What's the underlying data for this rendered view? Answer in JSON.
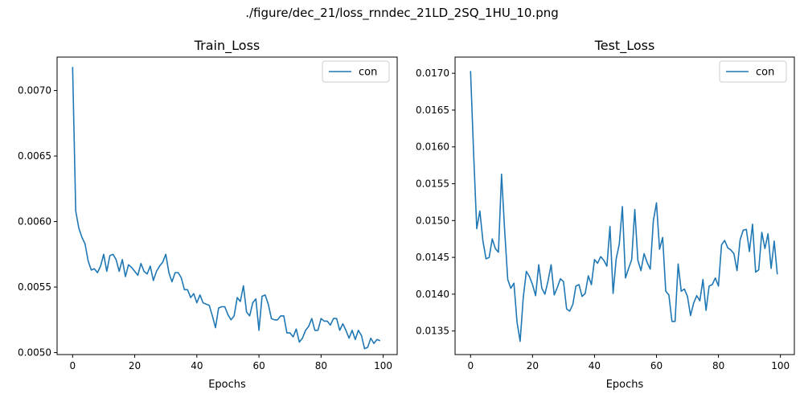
{
  "figure": {
    "title": "./figure/dec_21/loss_rnndec_21LD_2SQ_1HU_10.png"
  },
  "colors": {
    "series": "#1f77b4",
    "axis": "#000000",
    "legend_border": "#cccccc"
  },
  "chart_data": [
    {
      "type": "line",
      "title": "Train_Loss",
      "xlabel": "Epochs",
      "ylabel": "",
      "xlim": [
        -5,
        104.5
      ],
      "ylim": [
        0.004985,
        0.007255
      ],
      "xticks": [
        0,
        20,
        40,
        60,
        80,
        100
      ],
      "yticks": [
        0.005,
        0.0055,
        0.006,
        0.0065,
        0.007
      ],
      "ytick_labels": [
        "0.0050",
        "0.0055",
        "0.0060",
        "0.0065",
        "0.0070"
      ],
      "grid": false,
      "legend": "top-right",
      "series": [
        {
          "name": "con",
          "color": "#1f77b4",
          "y": [
            0.00718,
            0.00608,
            0.00595,
            0.00588,
            0.00583,
            0.0057,
            0.00563,
            0.00564,
            0.00561,
            0.00566,
            0.00575,
            0.00562,
            0.00574,
            0.00575,
            0.00571,
            0.00562,
            0.00571,
            0.00558,
            0.00567,
            0.00565,
            0.00562,
            0.00559,
            0.00568,
            0.00562,
            0.0056,
            0.00566,
            0.00555,
            0.00562,
            0.00566,
            0.00569,
            0.00575,
            0.00561,
            0.00554,
            0.00561,
            0.00561,
            0.00557,
            0.00548,
            0.00548,
            0.00542,
            0.00545,
            0.00538,
            0.00544,
            0.00538,
            0.00537,
            0.00536,
            0.00528,
            0.00519,
            0.00534,
            0.00535,
            0.00535,
            0.00529,
            0.00525,
            0.00528,
            0.00542,
            0.00539,
            0.00551,
            0.00531,
            0.00528,
            0.00538,
            0.00541,
            0.00517,
            0.00543,
            0.00544,
            0.00537,
            0.00526,
            0.00525,
            0.00525,
            0.00528,
            0.00528,
            0.00515,
            0.00515,
            0.00512,
            0.00518,
            0.00508,
            0.00511,
            0.00517,
            0.0052,
            0.00526,
            0.00517,
            0.00517,
            0.00526,
            0.00524,
            0.00524,
            0.00521,
            0.00526,
            0.00526,
            0.00517,
            0.00522,
            0.00517,
            0.00511,
            0.00517,
            0.0051,
            0.00517,
            0.00513,
            0.00503,
            0.00504,
            0.00511,
            0.00507,
            0.0051,
            0.00509
          ]
        }
      ]
    },
    {
      "type": "line",
      "title": "Test_Loss",
      "xlabel": "Epochs",
      "ylabel": "",
      "xlim": [
        -5,
        104.5
      ],
      "ylim": [
        0.01318,
        0.01722
      ],
      "xticks": [
        0,
        20,
        40,
        60,
        80,
        100
      ],
      "yticks": [
        0.0135,
        0.014,
        0.0145,
        0.015,
        0.0155,
        0.016,
        0.0165,
        0.017
      ],
      "ytick_labels": [
        "0.0135",
        "0.0140",
        "0.0145",
        "0.0150",
        "0.0155",
        "0.0160",
        "0.0165",
        "0.0170"
      ],
      "grid": false,
      "legend": "top-right",
      "series": [
        {
          "name": "con",
          "color": "#1f77b4",
          "y": [
            0.01703,
            0.0159,
            0.01489,
            0.01513,
            0.01472,
            0.01448,
            0.0145,
            0.01475,
            0.01462,
            0.01457,
            0.01563,
            0.01487,
            0.0142,
            0.01408,
            0.01415,
            0.01362,
            0.01336,
            0.01395,
            0.01431,
            0.01424,
            0.01413,
            0.01398,
            0.0144,
            0.01408,
            0.014,
            0.01418,
            0.0144,
            0.01399,
            0.01409,
            0.01421,
            0.01417,
            0.0138,
            0.01377,
            0.01386,
            0.01411,
            0.01413,
            0.01397,
            0.01401,
            0.01425,
            0.01413,
            0.01447,
            0.01442,
            0.01451,
            0.01446,
            0.01438,
            0.01492,
            0.01401,
            0.01448,
            0.01468,
            0.01519,
            0.01422,
            0.01435,
            0.01447,
            0.01515,
            0.01446,
            0.01432,
            0.01455,
            0.01443,
            0.01434,
            0.015,
            0.01524,
            0.01461,
            0.01477,
            0.01404,
            0.01399,
            0.01363,
            0.01363,
            0.01441,
            0.01404,
            0.01407,
            0.01397,
            0.01371,
            0.01388,
            0.01398,
            0.01391,
            0.0142,
            0.01378,
            0.01411,
            0.01413,
            0.01422,
            0.01411,
            0.01467,
            0.01473,
            0.01463,
            0.0146,
            0.01455,
            0.01432,
            0.01474,
            0.01487,
            0.01488,
            0.01458,
            0.01495,
            0.0143,
            0.01433,
            0.01484,
            0.01462,
            0.01482,
            0.01435,
            0.01472,
            0.01427
          ]
        }
      ]
    }
  ]
}
